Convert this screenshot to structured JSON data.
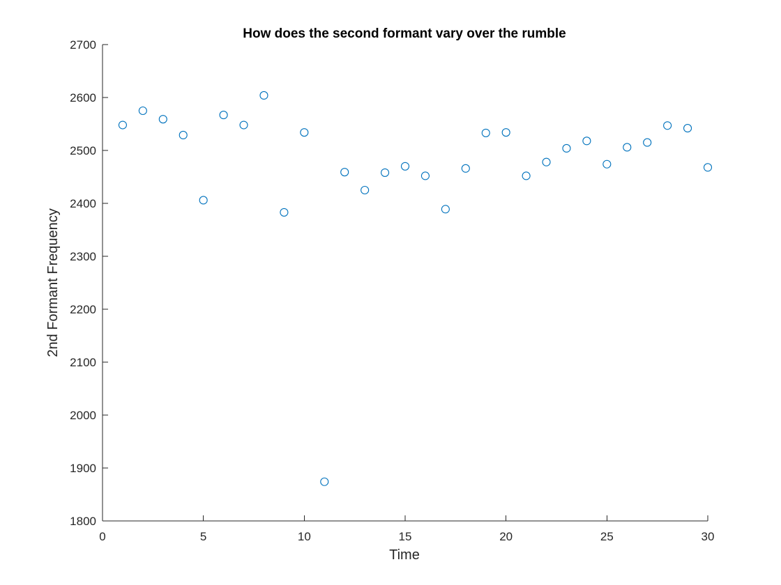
{
  "chart_data": {
    "type": "scatter",
    "title": "How does the second formant vary over the rumble",
    "xlabel": "Time",
    "ylabel": "2nd Formant Frequency",
    "xlim": [
      0,
      30
    ],
    "ylim": [
      1800,
      2700
    ],
    "xticks": [
      0,
      5,
      10,
      15,
      20,
      25,
      30
    ],
    "yticks": [
      1800,
      1900,
      2000,
      2100,
      2200,
      2300,
      2400,
      2500,
      2600,
      2700
    ],
    "grid": false,
    "marker": "circle-open",
    "color": "#0072BD",
    "series": [
      {
        "x": [
          1,
          2,
          3,
          4,
          5,
          6,
          7,
          8,
          9,
          10,
          11,
          12,
          13,
          14,
          15,
          16,
          17,
          18,
          19,
          20,
          21,
          22,
          23,
          24,
          25,
          26,
          27,
          28,
          29,
          30
        ],
        "y": [
          2548,
          2575,
          2559,
          2529,
          2406,
          2567,
          2548,
          2604,
          2383,
          2534,
          1874,
          2459,
          2425,
          2458,
          2470,
          2452,
          2389,
          2466,
          2533,
          2534,
          2452,
          2478,
          2504,
          2518,
          2474,
          2506,
          2515,
          2547,
          2542,
          2468
        ]
      }
    ]
  }
}
